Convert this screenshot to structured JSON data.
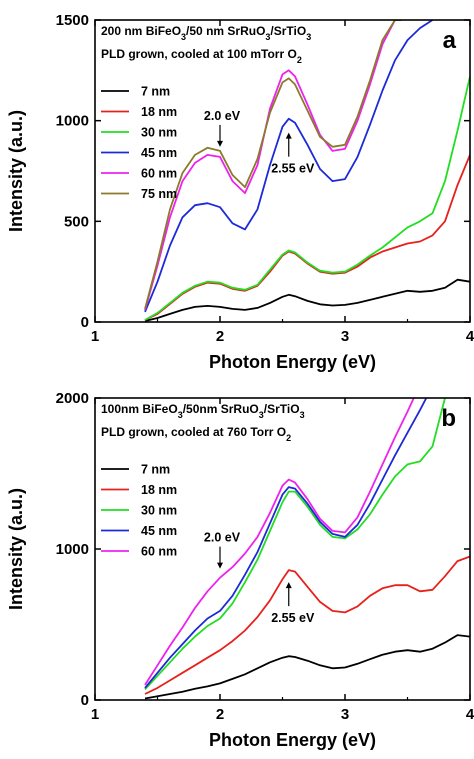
{
  "chart_data": [
    {
      "type": "line",
      "panel_label": "a",
      "title_lines": [
        [
          "200 nm BiFeO",
          {
            "sub": "3"
          },
          "/50 nm SrRuO",
          {
            "sub": "3"
          },
          "/SrTiO",
          {
            "sub": "3"
          }
        ],
        [
          "PLD grown, cooled at 100 mTorr O",
          {
            "sub": "2"
          }
        ]
      ],
      "xlabel": "Photon Energy (eV)",
      "ylabel": "Intensity (a.u.)",
      "xlim": [
        1,
        4
      ],
      "ylim": [
        0,
        1500
      ],
      "xticks": [
        1,
        2,
        3,
        4
      ],
      "yticks": [
        0,
        500,
        1000,
        1500
      ],
      "legend_placement": "top-left",
      "series": [
        {
          "name": "7 nm",
          "color": "#000000",
          "x": [
            1.4,
            1.5,
            1.6,
            1.7,
            1.8,
            1.9,
            2.0,
            2.1,
            2.2,
            2.3,
            2.4,
            2.5,
            2.55,
            2.6,
            2.7,
            2.8,
            2.9,
            3.0,
            3.1,
            3.2,
            3.3,
            3.4,
            3.5,
            3.6,
            3.7,
            3.8,
            3.9,
            4.0
          ],
          "y": [
            5,
            20,
            40,
            60,
            75,
            80,
            75,
            65,
            60,
            70,
            95,
            125,
            135,
            128,
            105,
            88,
            82,
            85,
            95,
            110,
            125,
            140,
            155,
            150,
            155,
            170,
            210,
            200
          ]
        },
        {
          "name": "18 nm",
          "color": "#e8201c",
          "x": [
            1.4,
            1.5,
            1.6,
            1.7,
            1.8,
            1.9,
            2.0,
            2.1,
            2.2,
            2.3,
            2.4,
            2.5,
            2.55,
            2.6,
            2.7,
            2.8,
            2.9,
            3.0,
            3.1,
            3.2,
            3.3,
            3.4,
            3.5,
            3.6,
            3.7,
            3.8,
            3.9,
            4.0
          ],
          "y": [
            10,
            40,
            90,
            140,
            175,
            195,
            190,
            165,
            155,
            180,
            250,
            330,
            350,
            340,
            290,
            250,
            240,
            245,
            275,
            320,
            350,
            370,
            390,
            400,
            430,
            500,
            680,
            830
          ]
        },
        {
          "name": "30 nm",
          "color": "#22dd22",
          "x": [
            1.4,
            1.5,
            1.6,
            1.7,
            1.8,
            1.9,
            2.0,
            2.1,
            2.2,
            2.3,
            2.4,
            2.5,
            2.55,
            2.6,
            2.7,
            2.8,
            2.9,
            3.0,
            3.1,
            3.2,
            3.3,
            3.4,
            3.5,
            3.6,
            3.7,
            3.8,
            3.9,
            4.0
          ],
          "y": [
            10,
            45,
            95,
            145,
            180,
            200,
            195,
            170,
            160,
            185,
            260,
            335,
            355,
            345,
            295,
            255,
            245,
            250,
            285,
            330,
            370,
            420,
            470,
            500,
            540,
            700,
            950,
            1220
          ]
        },
        {
          "name": "45 nm",
          "color": "#1c2ad8",
          "x": [
            1.4,
            1.5,
            1.6,
            1.7,
            1.8,
            1.9,
            2.0,
            2.1,
            2.2,
            2.3,
            2.4,
            2.5,
            2.55,
            2.6,
            2.7,
            2.8,
            2.9,
            3.0,
            3.1,
            3.2,
            3.3,
            3.4,
            3.5,
            3.6,
            3.7
          ],
          "y": [
            50,
            200,
            380,
            520,
            580,
            590,
            570,
            490,
            460,
            560,
            780,
            970,
            1010,
            990,
            880,
            760,
            700,
            710,
            820,
            980,
            1150,
            1300,
            1400,
            1460,
            1500
          ]
        },
        {
          "name": "60 nm",
          "color": "#ee22ee",
          "x": [
            1.4,
            1.5,
            1.6,
            1.7,
            1.8,
            1.9,
            2.0,
            2.1,
            2.2,
            2.3,
            2.4,
            2.5,
            2.55,
            2.6,
            2.7,
            2.8,
            2.9,
            3.0,
            3.1,
            3.2,
            3.3,
            3.4,
            3.45
          ],
          "y": [
            60,
            280,
            520,
            700,
            790,
            830,
            820,
            700,
            640,
            780,
            1060,
            1230,
            1250,
            1220,
            1080,
            930,
            850,
            860,
            1000,
            1180,
            1380,
            1500,
            1500
          ]
        },
        {
          "name": "75 nm",
          "color": "#8b7a2b",
          "x": [
            1.4,
            1.5,
            1.6,
            1.7,
            1.8,
            1.9,
            2.0,
            2.1,
            2.2,
            2.3,
            2.4,
            2.5,
            2.55,
            2.6,
            2.7,
            2.8,
            2.9,
            3.0,
            3.1,
            3.2,
            3.3,
            3.4,
            3.45
          ],
          "y": [
            65,
            300,
            560,
            740,
            830,
            865,
            850,
            730,
            670,
            810,
            1040,
            1190,
            1210,
            1180,
            1050,
            920,
            870,
            880,
            1020,
            1200,
            1400,
            1500,
            1500
          ]
        }
      ],
      "annotations": [
        {
          "text": "2.0 eV",
          "x": 2.0,
          "y": 840,
          "arrow": "down"
        },
        {
          "text": "2.55 eV",
          "x": 2.55,
          "y": 1000,
          "arrow": "up"
        }
      ]
    },
    {
      "type": "line",
      "panel_label": "b",
      "title_lines": [
        [
          "100nm BiFeO",
          {
            "sub": "3"
          },
          "/50nm SrRuO",
          {
            "sub": "3"
          },
          "/SrTiO",
          {
            "sub": "3"
          }
        ],
        [
          "PLD grown, cooled at 760 Torr O",
          {
            "sub": "2"
          }
        ]
      ],
      "xlabel": "Photon Energy (eV)",
      "ylabel": "Intensity (a.u.)",
      "xlim": [
        1,
        4
      ],
      "ylim": [
        0,
        2000
      ],
      "xticks": [
        1,
        2,
        3,
        4
      ],
      "yticks": [
        0,
        1000,
        2000
      ],
      "legend_placement": "top-left",
      "series": [
        {
          "name": "7 nm",
          "color": "#000000",
          "x": [
            1.4,
            1.5,
            1.6,
            1.7,
            1.8,
            1.9,
            2.0,
            2.1,
            2.2,
            2.3,
            2.4,
            2.5,
            2.55,
            2.6,
            2.7,
            2.8,
            2.9,
            3.0,
            3.1,
            3.2,
            3.3,
            3.4,
            3.5,
            3.6,
            3.7,
            3.8,
            3.9,
            4.0
          ],
          "y": [
            10,
            25,
            40,
            55,
            75,
            90,
            110,
            140,
            170,
            210,
            250,
            280,
            290,
            285,
            260,
            230,
            210,
            215,
            240,
            270,
            300,
            320,
            330,
            320,
            340,
            380,
            430,
            420
          ]
        },
        {
          "name": "18 nm",
          "color": "#e8201c",
          "x": [
            1.4,
            1.5,
            1.6,
            1.7,
            1.8,
            1.9,
            2.0,
            2.1,
            2.2,
            2.3,
            2.4,
            2.5,
            2.55,
            2.6,
            2.7,
            2.8,
            2.9,
            3.0,
            3.1,
            3.2,
            3.3,
            3.4,
            3.5,
            3.6,
            3.7,
            3.8,
            3.9,
            4.0
          ],
          "y": [
            40,
            80,
            130,
            180,
            230,
            280,
            330,
            390,
            460,
            550,
            660,
            800,
            860,
            850,
            750,
            650,
            590,
            580,
            620,
            690,
            740,
            760,
            760,
            720,
            730,
            820,
            920,
            950
          ]
        },
        {
          "name": "30 nm",
          "color": "#22dd22",
          "x": [
            1.4,
            1.5,
            1.6,
            1.7,
            1.8,
            1.9,
            2.0,
            2.1,
            2.2,
            2.3,
            2.4,
            2.5,
            2.55,
            2.6,
            2.7,
            2.8,
            2.9,
            3.0,
            3.1,
            3.2,
            3.3,
            3.4,
            3.5,
            3.6,
            3.7,
            3.8
          ],
          "y": [
            70,
            160,
            250,
            340,
            420,
            490,
            540,
            640,
            780,
            930,
            1120,
            1310,
            1380,
            1380,
            1280,
            1160,
            1080,
            1070,
            1130,
            1230,
            1360,
            1480,
            1560,
            1580,
            1680,
            2000
          ]
        },
        {
          "name": "45 nm",
          "color": "#1c2ad8",
          "x": [
            1.4,
            1.5,
            1.6,
            1.7,
            1.8,
            1.9,
            2.0,
            2.1,
            2.2,
            2.3,
            2.4,
            2.5,
            2.55,
            2.6,
            2.7,
            2.8,
            2.9,
            3.0,
            3.1,
            3.2,
            3.3,
            3.4,
            3.5,
            3.6,
            3.65
          ],
          "y": [
            80,
            180,
            280,
            370,
            460,
            540,
            590,
            690,
            830,
            980,
            1170,
            1360,
            1410,
            1400,
            1300,
            1180,
            1100,
            1080,
            1160,
            1300,
            1460,
            1620,
            1770,
            1920,
            2000
          ]
        },
        {
          "name": "60 nm",
          "color": "#ee22ee",
          "x": [
            1.4,
            1.5,
            1.6,
            1.7,
            1.8,
            1.9,
            2.0,
            2.1,
            2.2,
            2.3,
            2.4,
            2.5,
            2.55,
            2.6,
            2.7,
            2.8,
            2.9,
            3.0,
            3.1,
            3.2,
            3.3,
            3.4,
            3.5,
            3.55
          ],
          "y": [
            100,
            230,
            360,
            480,
            610,
            720,
            810,
            880,
            970,
            1080,
            1240,
            1420,
            1460,
            1440,
            1330,
            1200,
            1120,
            1110,
            1210,
            1380,
            1560,
            1740,
            1910,
            2000
          ]
        }
      ],
      "annotations": [
        {
          "text": "2.0 eV",
          "x": 2.0,
          "y": 830,
          "arrow": "down"
        },
        {
          "text": "2.55 eV",
          "x": 2.55,
          "y": 860,
          "arrow": "up"
        }
      ]
    }
  ]
}
